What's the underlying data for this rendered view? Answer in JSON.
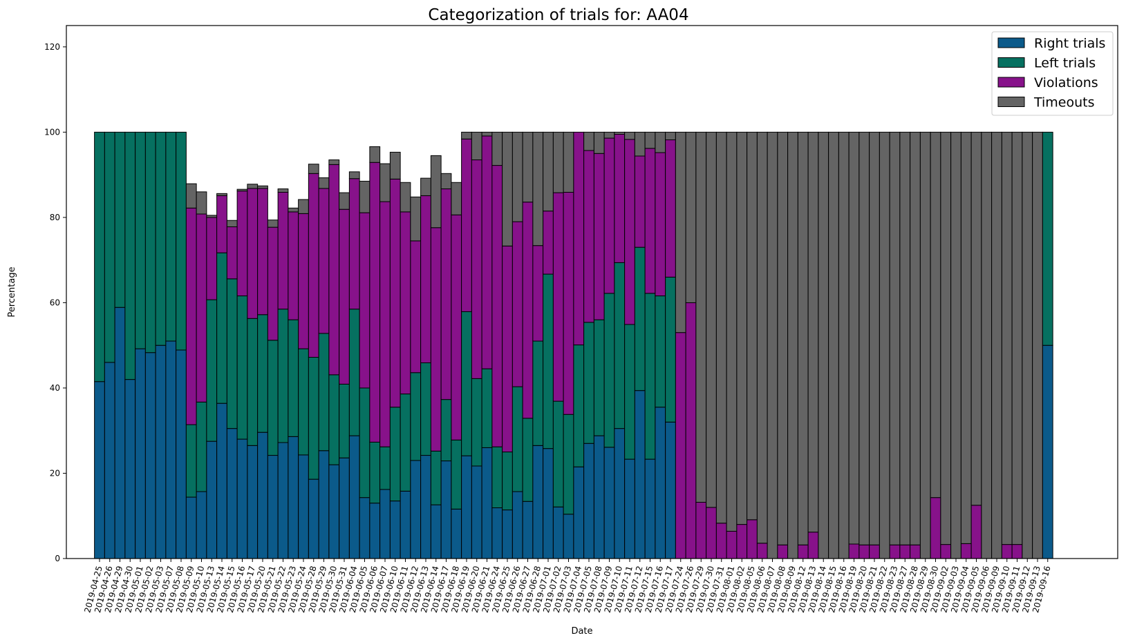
{
  "chart_data": {
    "type": "bar",
    "stacked": true,
    "title": "Categorization of trials for: AA04",
    "xlabel": "Date",
    "ylabel": "Percentage",
    "ylim": [
      0,
      125
    ],
    "yticks": [
      0,
      20,
      40,
      60,
      80,
      100,
      120
    ],
    "legend_position": "top-right",
    "categories": [
      "2019-04-25",
      "2019-04-26",
      "2019-04-29",
      "2019-04-30",
      "2019-05-01",
      "2019-05-02",
      "2019-05-03",
      "2019-05-07",
      "2019-05-08",
      "2019-05-09",
      "2019-05-10",
      "2019-05-13",
      "2019-05-14",
      "2019-05-15",
      "2019-05-16",
      "2019-05-17",
      "2019-05-20",
      "2019-05-21",
      "2019-05-22",
      "2019-05-23",
      "2019-05-24",
      "2019-05-28",
      "2019-05-29",
      "2019-05-30",
      "2019-05-31",
      "2019-06-04",
      "2019-06-05",
      "2019-06-06",
      "2019-06-07",
      "2019-06-10",
      "2019-06-11",
      "2019-06-12",
      "2019-06-13",
      "2019-06-14",
      "2019-06-17",
      "2019-06-18",
      "2019-06-19",
      "2019-06-20",
      "2019-06-21",
      "2019-06-24",
      "2019-06-25",
      "2019-06-26",
      "2019-06-27",
      "2019-06-28",
      "2019-07-01",
      "2019-07-02",
      "2019-07-03",
      "2019-07-04",
      "2019-07-05",
      "2019-07-08",
      "2019-07-09",
      "2019-07-10",
      "2019-07-11",
      "2019-07-12",
      "2019-07-15",
      "2019-07-16",
      "2019-07-17",
      "2019-07-24",
      "2019-07-26",
      "2019-07-29",
      "2019-07-30",
      "2019-07-31",
      "2019-08-01",
      "2019-08-02",
      "2019-08-05",
      "2019-08-06",
      "2019-08-07",
      "2019-08-08",
      "2019-08-09",
      "2019-08-12",
      "2019-08-13",
      "2019-08-14",
      "2019-08-15",
      "2019-08-16",
      "2019-08-19",
      "2019-08-20",
      "2019-08-21",
      "2019-08-22",
      "2019-08-23",
      "2019-08-27",
      "2019-08-28",
      "2019-08-29",
      "2019-08-30",
      "2019-09-02",
      "2019-09-03",
      "2019-09-04",
      "2019-09-05",
      "2019-09-06",
      "2019-09-09",
      "2019-09-10",
      "2019-09-11",
      "2019-09-12",
      "2019-09-13",
      "2019-09-16"
    ],
    "series": [
      {
        "name": "Right trials",
        "color": "#0b5a8a",
        "values": [
          41.5,
          46,
          58.9,
          42,
          49.2,
          48.3,
          50,
          51,
          48.9,
          14.4,
          15.7,
          27.5,
          36.4,
          30.5,
          28,
          26.5,
          29.6,
          24.2,
          27.2,
          28.6,
          24.3,
          18.6,
          25.3,
          22,
          23.6,
          28.8,
          14.3,
          13,
          16.2,
          13.5,
          15.8,
          23,
          24.2,
          12.6,
          22.9,
          11.6,
          24.1,
          21.7,
          26,
          11.9,
          11.4,
          15.7,
          13.4,
          26.5,
          25.8,
          12.1,
          10.4,
          21.5,
          27,
          28.8,
          26.1,
          30.5,
          23.3,
          39.4,
          23.3,
          35.5,
          32,
          0,
          0,
          0,
          0,
          0,
          0,
          0,
          0,
          0,
          0,
          0,
          0,
          0,
          0,
          0,
          0,
          0,
          0,
          0,
          0,
          0,
          0,
          0,
          0,
          0,
          0,
          0,
          0,
          0,
          0,
          0,
          0,
          0,
          0,
          0,
          0,
          50
        ]
      },
      {
        "name": "Left trials",
        "color": "#067060",
        "values": [
          58.5,
          54,
          41.1,
          58,
          50.8,
          51.7,
          50,
          49,
          51.1,
          17,
          21,
          33.2,
          35.3,
          35.1,
          33.6,
          29.8,
          27.6,
          27,
          31.3,
          27.4,
          24.9,
          28.6,
          27.5,
          21.1,
          17.3,
          29.7,
          25.7,
          14.3,
          10,
          22,
          22.8,
          20.6,
          21.7,
          12.6,
          14.4,
          16.2,
          33.8,
          20.5,
          18.5,
          14.3,
          13.6,
          24.6,
          19.5,
          24.5,
          40.9,
          24.8,
          23.4,
          28.6,
          28.4,
          27.2,
          36.1,
          38.9,
          31.6,
          33.6,
          38.9,
          26.1,
          34,
          0,
          0,
          0,
          0,
          0,
          0,
          0,
          0,
          0,
          0,
          0,
          0,
          0,
          0,
          0,
          0,
          0,
          0,
          0,
          0,
          0,
          0,
          0,
          0,
          0,
          0,
          0,
          0,
          0,
          0,
          0,
          0,
          0,
          0,
          0,
          0,
          50
        ]
      },
      {
        "name": "Violations",
        "color": "#87128a",
        "values": [
          0,
          0,
          0,
          0,
          0,
          0,
          0,
          0,
          0,
          50.8,
          44.1,
          19.3,
          13.4,
          12.2,
          24.6,
          30.5,
          29.6,
          26.5,
          27.4,
          25.3,
          31.7,
          43.1,
          34,
          49.3,
          41,
          30.6,
          41.1,
          65.6,
          57.5,
          53.5,
          42.7,
          30.9,
          39.2,
          52.4,
          49.4,
          52.8,
          40.5,
          51.3,
          54.6,
          66,
          48.3,
          38.7,
          50.7,
          22.4,
          14.8,
          48.9,
          52.1,
          49.9,
          40.3,
          39,
          36.4,
          30.1,
          43.4,
          21.4,
          34,
          33.6,
          32.2,
          53,
          60,
          13.2,
          12,
          8.3,
          6.4,
          8,
          9.1,
          3.6,
          0,
          3.2,
          0,
          3.2,
          6.2,
          0,
          0,
          0,
          3.4,
          3.2,
          3.2,
          0,
          3.2,
          3.2,
          3.2,
          0,
          14.3,
          3.3,
          0,
          3.5,
          12.5,
          0,
          0,
          3.3,
          3.3,
          0,
          0,
          0
        ]
      },
      {
        "name": "Timeouts",
        "color": "#646464",
        "values": [
          0,
          0,
          0,
          0,
          0,
          0,
          0,
          0,
          0,
          5.7,
          5.2,
          0.5,
          0.5,
          1.5,
          0.4,
          1,
          0.6,
          1.7,
          0.8,
          0.9,
          3.3,
          2.2,
          2.5,
          1.1,
          3.9,
          1.6,
          7.4,
          3.7,
          8.9,
          6.3,
          6.9,
          10.3,
          4.1,
          16.9,
          3.6,
          7.6,
          1.6,
          6.5,
          0.9,
          7.8,
          26.7,
          21,
          16.4,
          26.6,
          18.5,
          14.2,
          14.1,
          0,
          4.3,
          5,
          1.4,
          0.5,
          1.7,
          5.6,
          3.8,
          4.8,
          1.8,
          47,
          40,
          86.8,
          88,
          91.7,
          93.6,
          92,
          90.9,
          96.4,
          100,
          96.8,
          100,
          96.8,
          93.8,
          100,
          100,
          100,
          96.6,
          96.8,
          96.8,
          100,
          96.8,
          96.8,
          96.8,
          100,
          85.7,
          96.7,
          100,
          96.5,
          87.5,
          100,
          100,
          96.7,
          96.7,
          100,
          100,
          0
        ]
      }
    ]
  }
}
